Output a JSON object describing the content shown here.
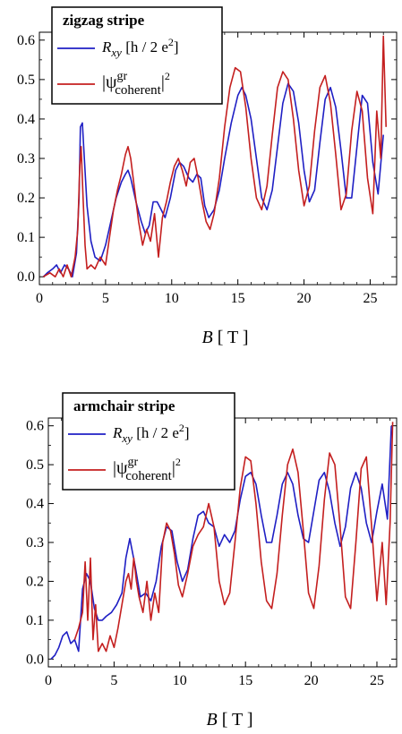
{
  "figure": {
    "colors": {
      "blue": "#1f1fc4",
      "red": "#c41f1f",
      "axis": "#000000"
    }
  },
  "chart_data": [
    {
      "type": "line",
      "legend_title": "zigzag stripe",
      "legend_placement": "top-left",
      "xlabel": "B  [ T ]",
      "xlim": [
        0,
        27
      ],
      "ylim": [
        -0.02,
        0.62
      ],
      "xticks": [
        0,
        5,
        10,
        15,
        20,
        25
      ],
      "yticks": [
        0.0,
        0.1,
        0.2,
        0.3,
        0.4,
        0.5,
        0.6
      ],
      "ytick_labels": [
        "0.0",
        "0.1",
        "0.2",
        "0.3",
        "0.4",
        "0.5",
        "0.6"
      ],
      "grid": false,
      "series": [
        {
          "name": "R_xy [h / 2 e^2]",
          "color": "#1f1fc4",
          "x": [
            0.3,
            0.6,
            1.0,
            1.3,
            1.6,
            1.9,
            2.2,
            2.5,
            2.8,
            3.0,
            3.1,
            3.25,
            3.4,
            3.6,
            3.9,
            4.2,
            4.6,
            5.0,
            5.4,
            5.8,
            6.2,
            6.5,
            6.7,
            6.9,
            7.3,
            7.7,
            8.0,
            8.3,
            8.6,
            8.9,
            9.2,
            9.5,
            9.9,
            10.3,
            10.6,
            10.9,
            11.3,
            11.6,
            11.9,
            12.2,
            12.5,
            12.8,
            13.2,
            13.6,
            14.0,
            14.5,
            15.0,
            15.3,
            15.6,
            16.0,
            16.4,
            16.8,
            17.2,
            17.6,
            18.0,
            18.4,
            18.8,
            19.2,
            19.6,
            20.0,
            20.4,
            20.8,
            21.2,
            21.6,
            22.0,
            22.4,
            22.8,
            23.2,
            23.6,
            24.0,
            24.4,
            24.8,
            25.2,
            25.6,
            26.0
          ],
          "y": [
            0.0,
            0.01,
            0.02,
            0.03,
            0.01,
            0.03,
            0.02,
            0.0,
            0.06,
            0.2,
            0.38,
            0.39,
            0.3,
            0.18,
            0.09,
            0.05,
            0.04,
            0.08,
            0.14,
            0.2,
            0.24,
            0.26,
            0.27,
            0.25,
            0.19,
            0.14,
            0.11,
            0.13,
            0.19,
            0.19,
            0.17,
            0.15,
            0.2,
            0.27,
            0.29,
            0.28,
            0.25,
            0.24,
            0.26,
            0.25,
            0.18,
            0.15,
            0.17,
            0.22,
            0.3,
            0.39,
            0.46,
            0.48,
            0.46,
            0.4,
            0.3,
            0.2,
            0.17,
            0.22,
            0.33,
            0.44,
            0.49,
            0.47,
            0.39,
            0.27,
            0.19,
            0.22,
            0.34,
            0.45,
            0.48,
            0.43,
            0.32,
            0.2,
            0.2,
            0.33,
            0.46,
            0.44,
            0.29,
            0.21,
            0.36
          ]
        },
        {
          "name": "|ψ^gr_coherent|^2",
          "color": "#c41f1f",
          "x": [
            0.3,
            0.8,
            1.2,
            1.5,
            1.8,
            2.1,
            2.4,
            2.7,
            2.9,
            3.05,
            3.15,
            3.3,
            3.45,
            3.6,
            3.9,
            4.2,
            4.6,
            5.0,
            5.3,
            5.6,
            5.9,
            6.2,
            6.5,
            6.7,
            6.9,
            7.2,
            7.5,
            7.8,
            8.1,
            8.4,
            8.7,
            9.0,
            9.3,
            9.6,
            9.9,
            10.2,
            10.5,
            10.8,
            11.1,
            11.4,
            11.7,
            12.0,
            12.3,
            12.6,
            12.9,
            13.2,
            13.6,
            14.0,
            14.4,
            14.8,
            15.2,
            15.6,
            16.0,
            16.4,
            16.8,
            17.2,
            17.6,
            18.0,
            18.4,
            18.8,
            19.2,
            19.6,
            20.0,
            20.4,
            20.8,
            21.2,
            21.6,
            22.0,
            22.4,
            22.8,
            23.2,
            23.6,
            24.0,
            24.4,
            24.8,
            25.2,
            25.5,
            25.8,
            26.0,
            26.2
          ],
          "y": [
            0.0,
            0.01,
            0.0,
            0.02,
            0.0,
            0.03,
            0.0,
            0.05,
            0.12,
            0.28,
            0.33,
            0.2,
            0.08,
            0.02,
            0.03,
            0.02,
            0.05,
            0.03,
            0.1,
            0.17,
            0.22,
            0.26,
            0.31,
            0.33,
            0.3,
            0.22,
            0.14,
            0.08,
            0.12,
            0.09,
            0.16,
            0.05,
            0.15,
            0.19,
            0.24,
            0.28,
            0.3,
            0.27,
            0.23,
            0.29,
            0.3,
            0.25,
            0.19,
            0.14,
            0.12,
            0.16,
            0.25,
            0.38,
            0.48,
            0.53,
            0.52,
            0.43,
            0.3,
            0.2,
            0.17,
            0.23,
            0.36,
            0.48,
            0.52,
            0.5,
            0.4,
            0.27,
            0.18,
            0.23,
            0.37,
            0.48,
            0.51,
            0.44,
            0.31,
            0.17,
            0.21,
            0.37,
            0.47,
            0.42,
            0.25,
            0.16,
            0.42,
            0.3,
            0.61,
            0.38
          ]
        }
      ]
    },
    {
      "type": "line",
      "legend_title": "armchair stripe",
      "legend_placement": "top-left",
      "xlabel": "B  [ T ]",
      "xlim": [
        0,
        26.5
      ],
      "ylim": [
        -0.02,
        0.62
      ],
      "xticks": [
        0,
        5,
        10,
        15,
        20,
        25
      ],
      "yticks": [
        0.0,
        0.1,
        0.2,
        0.3,
        0.4,
        0.5,
        0.6
      ],
      "ytick_labels": [
        "0.0",
        "0.1",
        "0.2",
        "0.3",
        "0.4",
        "0.5",
        "0.6"
      ],
      "grid": false,
      "series": [
        {
          "name": "R_xy [h / 2 e^2]",
          "color": "#1f1fc4",
          "x": [
            0.2,
            0.5,
            0.8,
            1.1,
            1.4,
            1.7,
            2.0,
            2.3,
            2.6,
            2.9,
            3.2,
            3.5,
            3.8,
            4.1,
            4.4,
            4.8,
            5.2,
            5.6,
            5.9,
            6.2,
            6.6,
            7.0,
            7.4,
            7.8,
            8.2,
            8.6,
            9.0,
            9.4,
            9.8,
            10.2,
            10.6,
            11.0,
            11.4,
            11.8,
            12.2,
            12.6,
            13.0,
            13.4,
            13.8,
            14.2,
            14.6,
            15.0,
            15.4,
            15.8,
            16.2,
            16.6,
            17.0,
            17.4,
            17.8,
            18.2,
            18.6,
            19.0,
            19.4,
            19.8,
            20.2,
            20.6,
            21.0,
            21.4,
            21.8,
            22.2,
            22.6,
            23.0,
            23.4,
            23.8,
            24.2,
            24.6,
            25.0,
            25.4,
            25.8,
            26.1
          ],
          "y": [
            0.0,
            0.01,
            0.03,
            0.06,
            0.07,
            0.04,
            0.05,
            0.02,
            0.18,
            0.22,
            0.2,
            0.13,
            0.1,
            0.1,
            0.11,
            0.12,
            0.14,
            0.17,
            0.26,
            0.31,
            0.24,
            0.16,
            0.17,
            0.15,
            0.2,
            0.29,
            0.34,
            0.33,
            0.25,
            0.2,
            0.23,
            0.31,
            0.37,
            0.38,
            0.35,
            0.34,
            0.29,
            0.32,
            0.3,
            0.33,
            0.41,
            0.47,
            0.48,
            0.45,
            0.37,
            0.3,
            0.3,
            0.37,
            0.45,
            0.48,
            0.45,
            0.37,
            0.31,
            0.3,
            0.38,
            0.46,
            0.48,
            0.43,
            0.35,
            0.29,
            0.34,
            0.44,
            0.48,
            0.44,
            0.35,
            0.3,
            0.38,
            0.45,
            0.36,
            0.6
          ]
        },
        {
          "name": "|ψ^gr_coherent|^2",
          "color": "#c41f1f",
          "x": [
            2.0,
            2.3,
            2.6,
            2.8,
            3.0,
            3.2,
            3.4,
            3.6,
            3.8,
            4.1,
            4.4,
            4.7,
            5.0,
            5.3,
            5.6,
            5.9,
            6.1,
            6.3,
            6.5,
            6.7,
            6.9,
            7.2,
            7.5,
            7.8,
            8.1,
            8.4,
            8.7,
            9.0,
            9.3,
            9.6,
            9.9,
            10.2,
            10.6,
            11.0,
            11.4,
            11.8,
            12.2,
            12.6,
            13.0,
            13.4,
            13.8,
            14.2,
            14.6,
            15.0,
            15.4,
            15.8,
            16.2,
            16.6,
            17.0,
            17.4,
            17.8,
            18.2,
            18.6,
            19.0,
            19.4,
            19.8,
            20.2,
            20.6,
            21.0,
            21.4,
            21.8,
            22.2,
            22.6,
            23.0,
            23.4,
            23.8,
            24.2,
            24.6,
            25.0,
            25.4,
            25.7,
            26.0,
            26.2
          ],
          "y": [
            0.05,
            0.08,
            0.12,
            0.25,
            0.1,
            0.26,
            0.05,
            0.14,
            0.02,
            0.04,
            0.02,
            0.06,
            0.03,
            0.08,
            0.14,
            0.2,
            0.22,
            0.18,
            0.26,
            0.2,
            0.16,
            0.12,
            0.2,
            0.1,
            0.17,
            0.12,
            0.3,
            0.35,
            0.33,
            0.27,
            0.19,
            0.16,
            0.22,
            0.29,
            0.32,
            0.34,
            0.4,
            0.34,
            0.2,
            0.14,
            0.17,
            0.3,
            0.44,
            0.52,
            0.51,
            0.4,
            0.25,
            0.15,
            0.13,
            0.22,
            0.37,
            0.5,
            0.54,
            0.48,
            0.33,
            0.17,
            0.13,
            0.24,
            0.41,
            0.53,
            0.5,
            0.34,
            0.16,
            0.13,
            0.3,
            0.49,
            0.52,
            0.34,
            0.15,
            0.3,
            0.14,
            0.35,
            0.61
          ]
        }
      ]
    }
  ]
}
